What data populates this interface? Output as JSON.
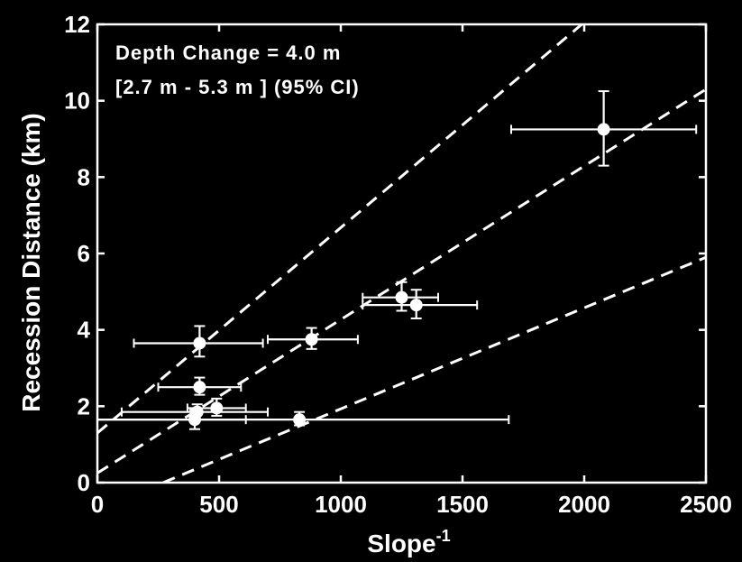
{
  "chart_data": {
    "type": "scatter",
    "title": "",
    "xlabel": "Slope",
    "xlabel_superscript": "-1",
    "ylabel": "Recession Distance (km)",
    "xlim": [
      0,
      2500
    ],
    "ylim": [
      0,
      12
    ],
    "xticks": [
      0,
      500,
      1000,
      1500,
      2000,
      2500
    ],
    "yticks": [
      0,
      2,
      4,
      6,
      8,
      10,
      12
    ],
    "grid": false,
    "annotations": [
      "Depth Change = 4.0 m",
      "[2.7 m  - 5.3 m ] (95% CI)"
    ],
    "points": [
      {
        "x": 420,
        "y": 3.65,
        "xerr": [
          150,
          680
        ],
        "yerr": [
          3.3,
          4.1
        ]
      },
      {
        "x": 420,
        "y": 2.5,
        "xerr": [
          250,
          590
        ],
        "yerr": [
          2.3,
          2.75
        ]
      },
      {
        "x": 410,
        "y": 1.85,
        "xerr": [
          100,
          700
        ],
        "yerr": [
          1.65,
          2.05
        ]
      },
      {
        "x": 400,
        "y": 1.65,
        "xerr": [
          0,
          610
        ],
        "yerr": [
          1.4,
          1.9
        ]
      },
      {
        "x": 490,
        "y": 1.95,
        "xerr": [
          370,
          610
        ],
        "yerr": [
          1.75,
          2.2
        ]
      },
      {
        "x": 830,
        "y": 1.65,
        "xerr": [
          0,
          1690
        ],
        "yerr": [
          1.5,
          1.85
        ]
      },
      {
        "x": 880,
        "y": 3.75,
        "xerr": [
          700,
          1070
        ],
        "yerr": [
          3.5,
          4.05
        ]
      },
      {
        "x": 1250,
        "y": 4.85,
        "xerr": [
          1090,
          1400
        ],
        "yerr": [
          4.5,
          5.25
        ]
      },
      {
        "x": 1310,
        "y": 4.65,
        "xerr": [
          1090,
          1560
        ],
        "yerr": [
          4.3,
          5.05
        ]
      },
      {
        "x": 2080,
        "y": 9.25,
        "xerr": [
          1700,
          2460
        ],
        "yerr": [
          8.3,
          10.25
        ]
      }
    ],
    "lines": [
      {
        "style": "dashed",
        "x": [
          0,
          1990
        ],
        "y": [
          1.3,
          12
        ]
      },
      {
        "style": "dashed",
        "x": [
          0,
          2500
        ],
        "y": [
          0.25,
          10.3
        ]
      },
      {
        "style": "dashed",
        "x": [
          270,
          2500
        ],
        "y": [
          0,
          5.9
        ]
      }
    ]
  }
}
